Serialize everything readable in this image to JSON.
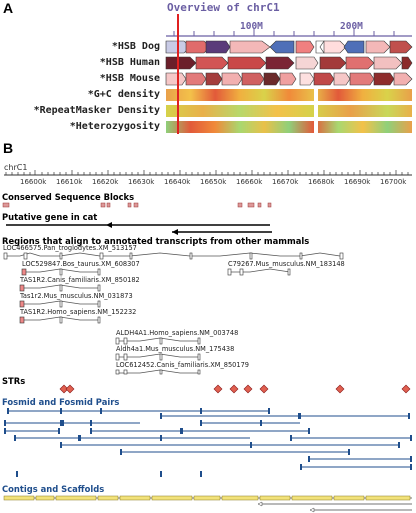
{
  "panel_a": {
    "letter": "A",
    "overview_title": "Overview of chrC1",
    "ticks": [
      "100M",
      "200M"
    ],
    "tracks": [
      "*HSB Dog",
      "*HSB Human",
      "*HSB Mouse",
      "*G+C density",
      "*RepeatMasker Density",
      "*Heterozygosity"
    ]
  },
  "panel_b": {
    "letter": "B",
    "chrom": "chrC1",
    "ticks": [
      "16600k",
      "16610k",
      "16620k",
      "16630k",
      "16640k",
      "16650k",
      "16660k",
      "16670k",
      "16680k",
      "16690k",
      "16700k"
    ],
    "sections": {
      "conserved": "Conserved Sequence Blocks",
      "putative": "Putative gene in cat",
      "regions": "Regions that align to annotated transcripts from other mammals",
      "strs": "STRs",
      "fosmid": "Fosmid and Fosmid Pairs",
      "contigs": "Contigs and Scaffolds"
    },
    "transcripts": [
      "LOC466575.Pan_troglodytes.XM_513157",
      "LOC529847.Bos_taurus.XM_608307",
      "C79267.Mus_musculus.NM_183148",
      "TAS1R2.Canis_familiaris.XM_850182",
      "Tas1r2.Mus_musculus.NM_031873",
      "TAS1R2.Homo_sapiens.NM_152232",
      "ALDH4A1.Homo_sapiens.NM_003748",
      "Aldh4a1.Mus_musculus.NM_175438",
      "LOC612452.Canis_familiaris.XM_850179"
    ]
  }
}
